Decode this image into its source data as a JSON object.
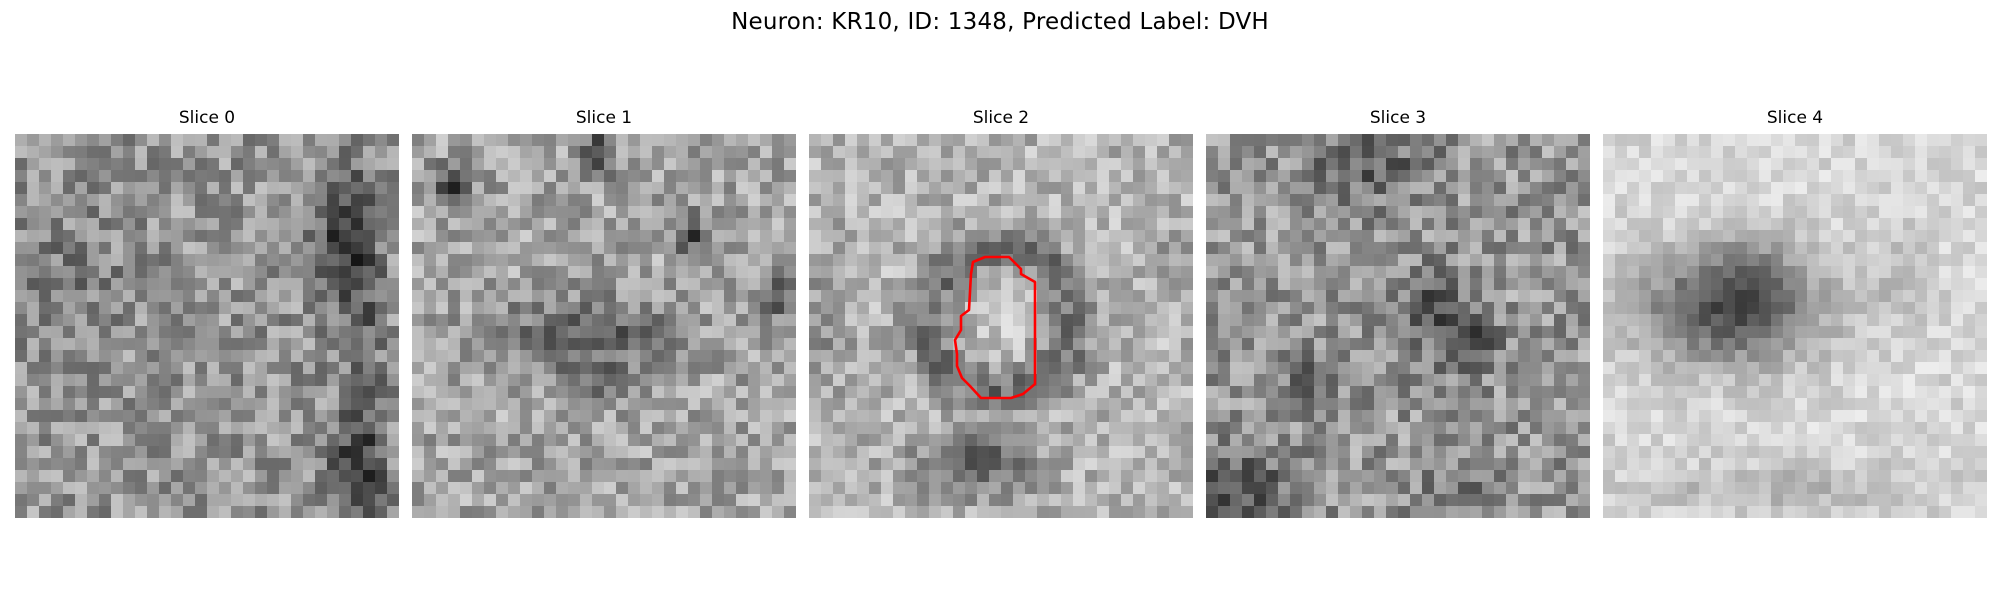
{
  "figure": {
    "title": "Neuron: KR10, ID: 1348, Predicted Label: DVH"
  },
  "panels": [
    {
      "title": "Slice 0"
    },
    {
      "title": "Slice 1"
    },
    {
      "title": "Slice 2"
    },
    {
      "title": "Slice 3"
    },
    {
      "title": "Slice 4"
    }
  ],
  "colors": {
    "contour": "#ff0000",
    "background": "#ffffff",
    "colormap": "gray"
  }
}
